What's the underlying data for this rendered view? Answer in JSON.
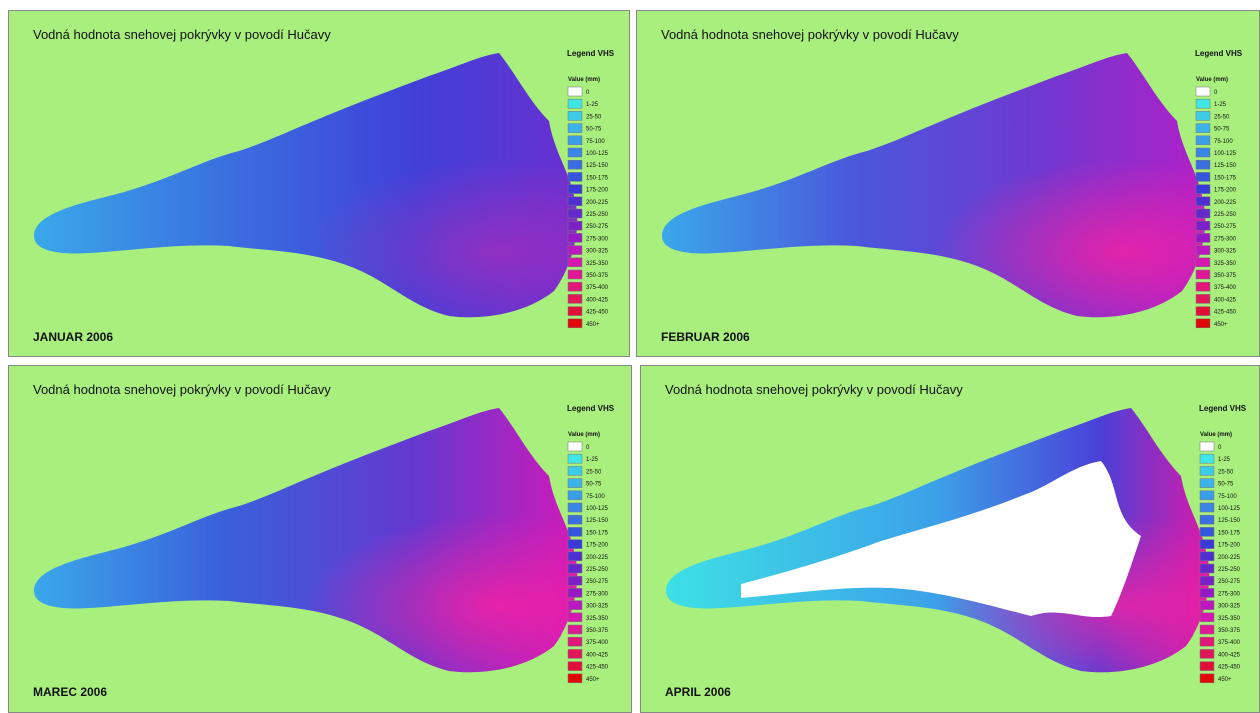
{
  "panels": [
    {
      "title": "Vodná hodnota snehovej pokrývky v povodí Hučavy",
      "label": "JANUAR 2006"
    },
    {
      "title": "Vodná hodnota snehovej pokrývky v povodí Hučavy",
      "label": "FEBRUAR 2006"
    },
    {
      "title": "Vodná hodnota snehovej pokrývky v povodí Hučavy",
      "label": "MAREC 2006"
    },
    {
      "title": "Vodná hodnota snehovej pokrývky v povodí Hučavy",
      "label": "APRIL 2006"
    }
  ],
  "legend": {
    "title": "Legend VHS",
    "subtitle": "Value (mm)",
    "classes": [
      {
        "label": "0",
        "color": "#ffffff"
      },
      {
        "label": "1-25",
        "color": "#3ee6e6"
      },
      {
        "label": "25-50",
        "color": "#3dcbe8"
      },
      {
        "label": "50-75",
        "color": "#3cb3e8"
      },
      {
        "label": "75-100",
        "color": "#3b9ee8"
      },
      {
        "label": "100-125",
        "color": "#3a86e4"
      },
      {
        "label": "125-150",
        "color": "#3a6ee0"
      },
      {
        "label": "150-175",
        "color": "#3456dc"
      },
      {
        "label": "175-200",
        "color": "#3a3ad8"
      },
      {
        "label": "200-225",
        "color": "#4e30d2"
      },
      {
        "label": "225-250",
        "color": "#6428cc"
      },
      {
        "label": "250-275",
        "color": "#7c20c8"
      },
      {
        "label": "275-300",
        "color": "#9618c6"
      },
      {
        "label": "300-325",
        "color": "#bc18c0"
      },
      {
        "label": "325-350",
        "color": "#d418b0"
      },
      {
        "label": "350-375",
        "color": "#de1896"
      },
      {
        "label": "375-400",
        "color": "#e0187a"
      },
      {
        "label": "400-425",
        "color": "#e0185a"
      },
      {
        "label": "425-450",
        "color": "#e01038"
      },
      {
        "label": "450+",
        "color": "#e00808"
      }
    ]
  }
}
